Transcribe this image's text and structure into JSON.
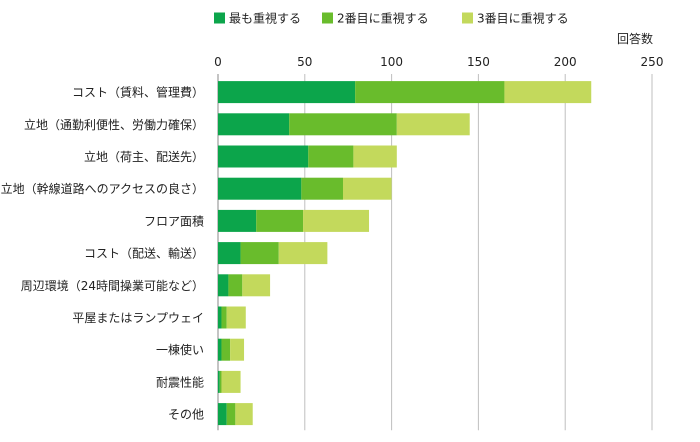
{
  "chart_data": {
    "type": "bar",
    "orientation": "horizontal",
    "stacked": true,
    "categories": [
      "コスト（賃料、管理費）",
      "立地（通勤利便性、労働力確保）",
      "立地（荷主、配送先）",
      "立地（幹線道路へのアクセスの良さ）",
      "フロア面積",
      "コスト（配送、輸送）",
      "周辺環境（24時間操業可能など）",
      "平屋またはランプウェイ",
      "一棟使い",
      "耐震性能",
      "その他"
    ],
    "series": [
      {
        "name": "最も重視する",
        "color": "#0ca54b",
        "values": [
          79,
          41,
          52,
          48,
          22,
          13,
          6,
          2,
          2,
          1,
          5
        ]
      },
      {
        "name": "2番目に重視する",
        "color": "#69bc2c",
        "values": [
          86,
          62,
          26,
          24,
          27,
          22,
          8,
          3,
          5,
          1,
          5
        ]
      },
      {
        "name": "3番目に重視する",
        "color": "#c3d95c",
        "values": [
          50,
          42,
          25,
          28,
          38,
          28,
          16,
          11,
          8,
          11,
          10
        ]
      }
    ],
    "x_axis": {
      "title": "回答数",
      "min": 0,
      "max": 250,
      "ticks": [
        0,
        50,
        100,
        150,
        200,
        250
      ],
      "position": "top",
      "grid": true
    },
    "legend": {
      "placement": "top"
    }
  }
}
